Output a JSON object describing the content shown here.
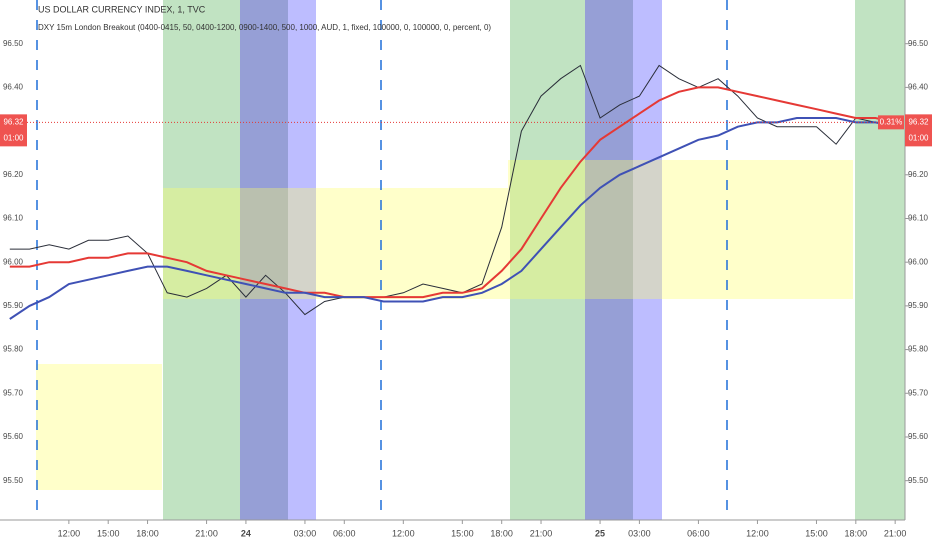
{
  "chart_data": {
    "type": "line",
    "title": "US DOLLAR CURRENCY INDEX, 1, TVC",
    "subtitle": "DXY 15m London Breakout (0400-0415, 50, 0400-1200, 0900-1400, 500, 1000, AUD, 1, fixed, 100000, 0, 100000, 0, percent, 0)",
    "categories": [
      null,
      null,
      null,
      "12:00",
      null,
      "15:00",
      null,
      "18:00",
      null,
      null,
      "21:00",
      null,
      "24",
      null,
      null,
      "03:00",
      null,
      "06:00",
      null,
      null,
      "12:00",
      null,
      null,
      "15:00",
      null,
      "18:00",
      null,
      "21:00",
      null,
      null,
      "25",
      null,
      "03:00",
      null,
      null,
      "06:00",
      null,
      null,
      "12:00",
      null,
      null,
      "15:00",
      null,
      "18:00",
      null,
      "21:00"
    ],
    "series": [
      {
        "color": "#2a2e39",
        "values": [
          96.03,
          96.03,
          96.04,
          96.03,
          96.05,
          96.05,
          96.06,
          96.02,
          95.93,
          95.92,
          95.94,
          95.97,
          95.92,
          95.97,
          95.93,
          95.88,
          95.91,
          95.92,
          95.92,
          95.92,
          95.93,
          95.95,
          95.94,
          95.93,
          95.95,
          96.08,
          96.3,
          96.38,
          96.42,
          96.45,
          96.33,
          96.36,
          96.38,
          96.45,
          96.42,
          96.4,
          96.42,
          96.38,
          96.33,
          96.31,
          96.31,
          96.31,
          96.27,
          96.33,
          96.32,
          96.32
        ]
      },
      {
        "color": "#e53935",
        "values": [
          95.99,
          95.99,
          96.0,
          96.0,
          96.01,
          96.01,
          96.02,
          96.02,
          96.01,
          96.0,
          95.98,
          95.97,
          95.96,
          95.95,
          95.94,
          95.93,
          95.93,
          95.92,
          95.92,
          95.92,
          95.92,
          95.92,
          95.93,
          95.93,
          95.94,
          95.98,
          96.03,
          96.1,
          96.17,
          96.23,
          96.28,
          96.31,
          96.34,
          96.37,
          96.39,
          96.4,
          96.4,
          96.39,
          96.38,
          96.37,
          96.36,
          96.35,
          96.34,
          96.33,
          96.33,
          96.32
        ]
      },
      {
        "color": "#3f51b5",
        "values": [
          95.87,
          95.9,
          95.92,
          95.95,
          95.96,
          95.97,
          95.98,
          95.99,
          95.99,
          95.98,
          95.97,
          95.96,
          95.95,
          95.94,
          95.93,
          95.93,
          95.92,
          95.92,
          95.92,
          95.91,
          95.91,
          95.91,
          95.92,
          95.92,
          95.93,
          95.95,
          95.98,
          96.03,
          96.08,
          96.13,
          96.17,
          96.2,
          96.22,
          96.24,
          96.26,
          96.28,
          96.29,
          96.31,
          96.32,
          96.32,
          96.33,
          96.33,
          96.33,
          96.32,
          96.32,
          96.31
        ]
      }
    ],
    "ylim": [
      95.41,
      96.6
    ],
    "yticks": [
      {
        "value": 95.5,
        "label": "95.50"
      },
      {
        "value": 95.6,
        "label": "95.60"
      },
      {
        "value": 95.7,
        "label": "95.70"
      },
      {
        "value": 95.8,
        "label": "95.80"
      },
      {
        "value": 95.9,
        "label": "95.90"
      },
      {
        "value": 96,
        "label": "96.00"
      },
      {
        "value": 96.1,
        "label": "96.10"
      },
      {
        "value": 96.2,
        "label": "96.20"
      },
      {
        "value": 96.3,
        "label": "96.30"
      },
      {
        "value": 96.4,
        "label": "96.40"
      },
      {
        "value": 96.5,
        "label": "96.50"
      }
    ],
    "last_price": {
      "value": 96.32,
      "label": "96.32"
    },
    "countdown": "01:00",
    "change": "0.31%"
  }
}
